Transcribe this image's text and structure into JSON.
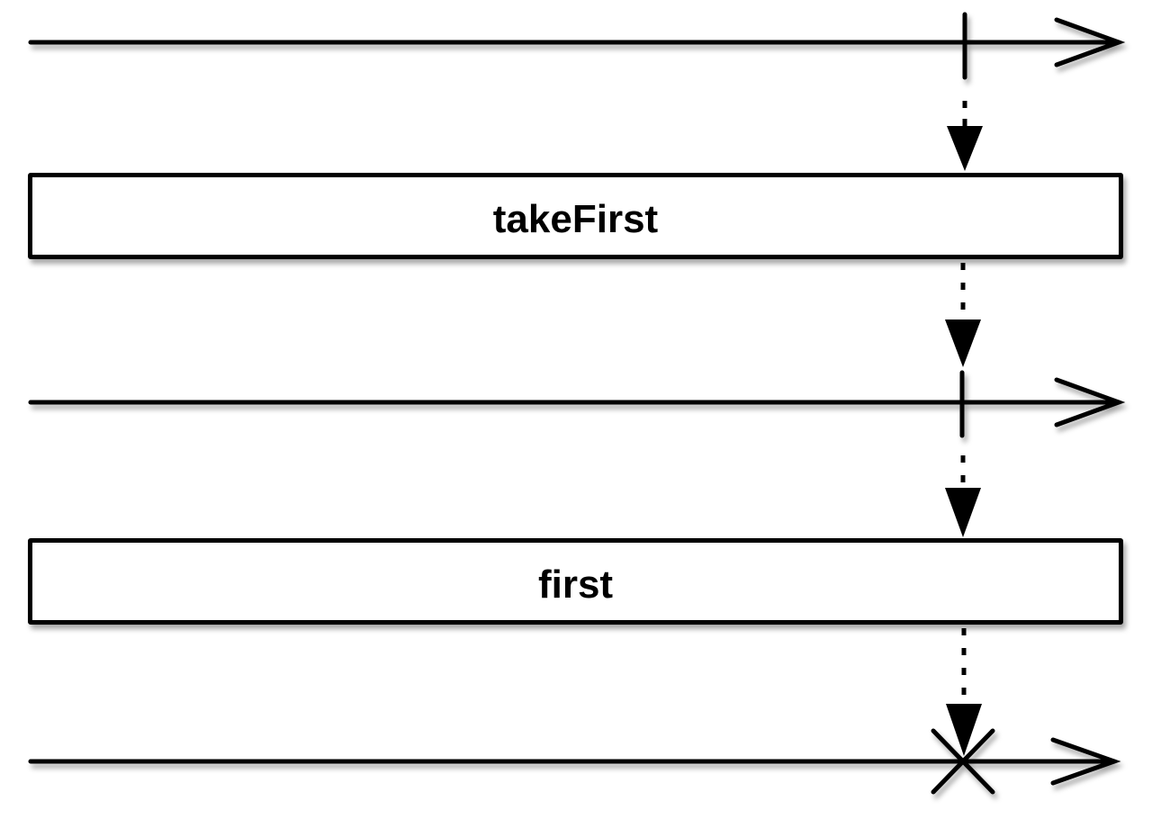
{
  "operators": [
    {
      "id": "takeFirst",
      "label": "takeFirst"
    },
    {
      "id": "first",
      "label": "first"
    }
  ],
  "timelines": [
    {
      "id": "source",
      "event": "emission"
    },
    {
      "id": "after-takeFirst",
      "event": "emission"
    },
    {
      "id": "after-first",
      "event": "error"
    }
  ],
  "colors": {
    "stroke": "#000000",
    "background": "#ffffff",
    "box_fill": "#ffffff"
  }
}
